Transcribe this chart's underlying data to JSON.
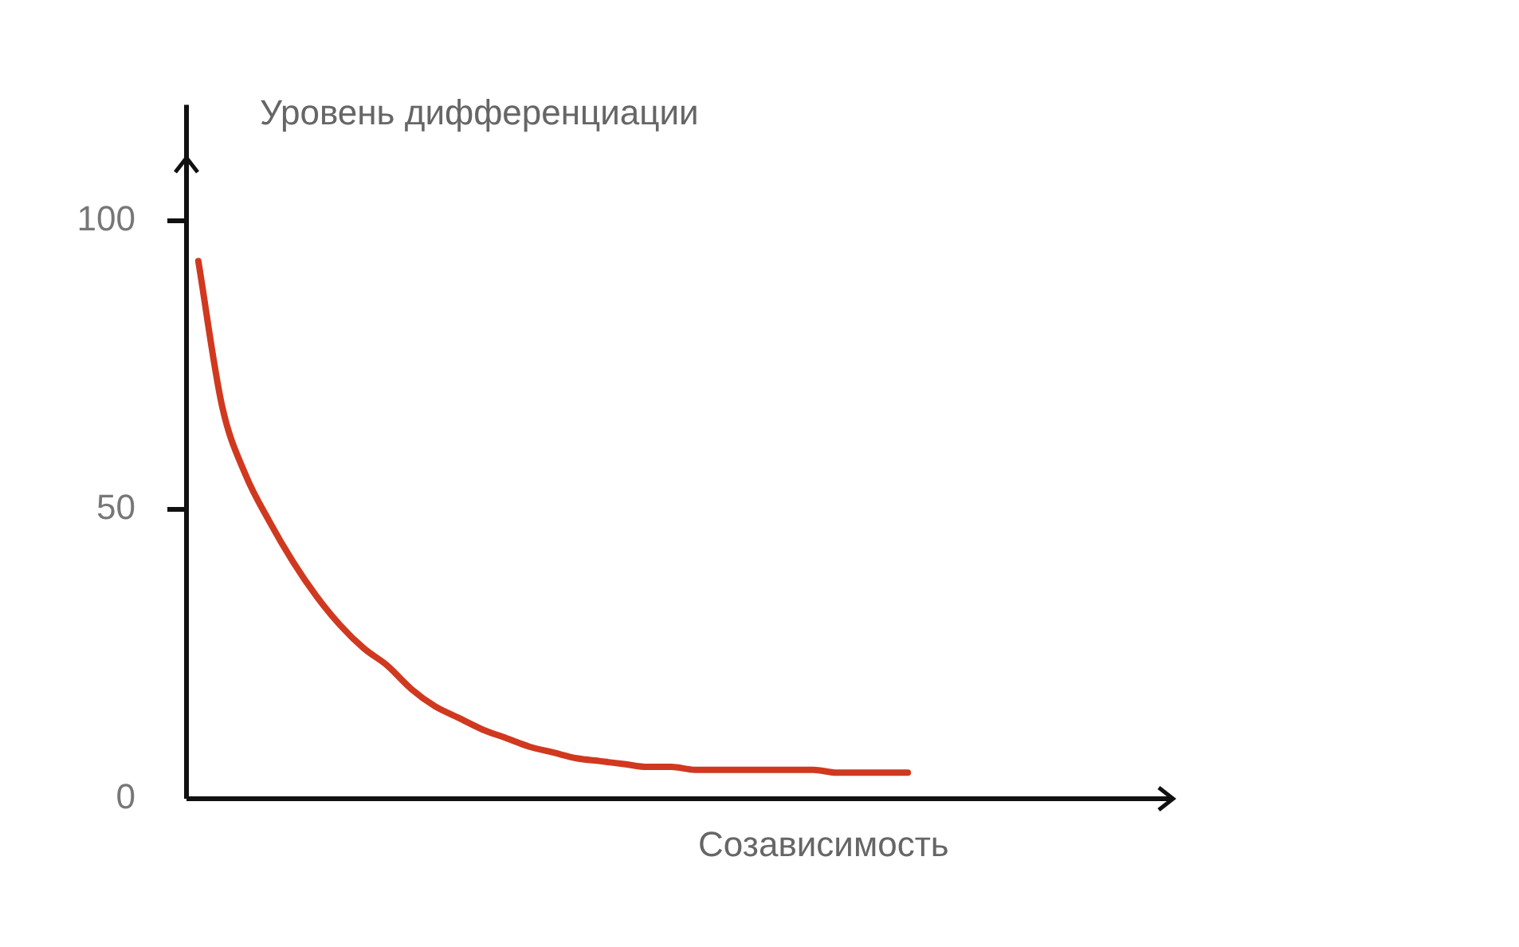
{
  "chart_data": {
    "type": "line",
    "xlabel": "Созависимость",
    "ylabel": "Уровень дифференциации",
    "categories": [
      null,
      null,
      null,
      null,
      null,
      null,
      null,
      null,
      null,
      null,
      null,
      null,
      null,
      null,
      null,
      null,
      null,
      null,
      null,
      null,
      null,
      null,
      null,
      null,
      null,
      null,
      null,
      null,
      null,
      null,
      null
    ],
    "series": [
      {
        "color": "#d0391f",
        "values": [
          93,
          68,
          56,
          48,
          41,
          35,
          30,
          26,
          23,
          19,
          16,
          14,
          12,
          10.5,
          9,
          8,
          7,
          6.5,
          6,
          5.5,
          5.5,
          5,
          5,
          5,
          5,
          5,
          5,
          4.5,
          4.5,
          4.5,
          4.5
        ]
      }
    ],
    "ylim": [
      0,
      120
    ],
    "yticks": [
      0,
      50,
      100
    ],
    "grid": false,
    "legend": false,
    "marker": "none",
    "line_style": "solid"
  }
}
